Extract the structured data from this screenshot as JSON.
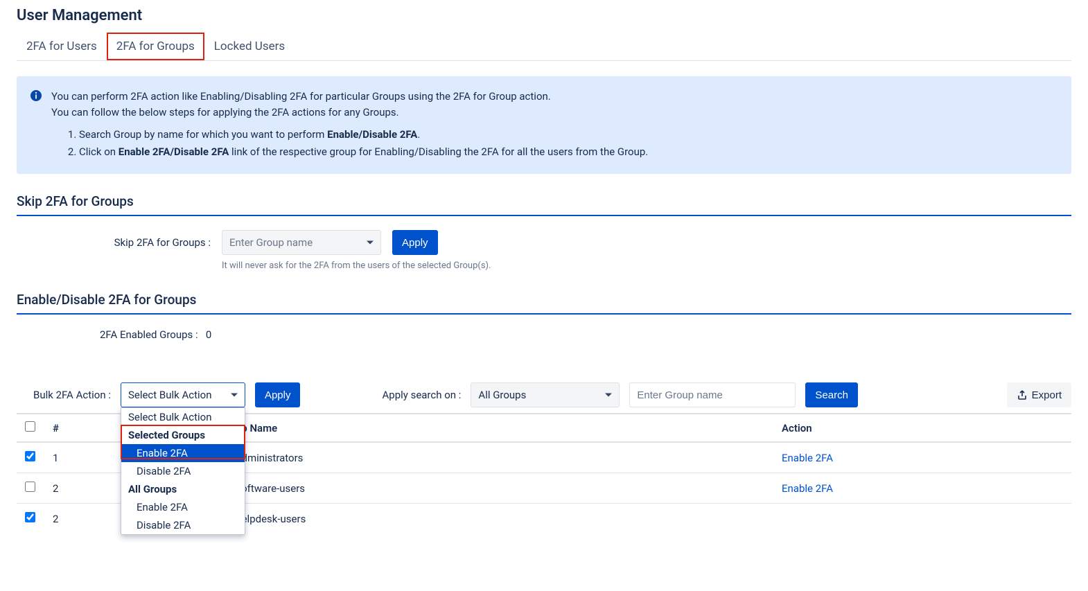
{
  "page_title": "User Management",
  "tabs": {
    "users": "2FA for Users",
    "groups": "2FA for Groups",
    "locked": "Locked Users"
  },
  "info": {
    "line1": "You can perform 2FA action like Enabling/Disabling 2FA for particular Groups using the 2FA for Group action.",
    "line2": "You can follow the below steps for applying the 2FA actions for any Groups.",
    "step1_pre": "Search Group by name for which you want to perform ",
    "step1_bold": "Enable/Disable 2FA",
    "step1_post": ".",
    "step2_pre": "Click on ",
    "step2_bold": "Enable 2FA/Disable 2FA",
    "step2_post": " link of the respective group for Enabling/Disabling the 2FA for all the users from the Group."
  },
  "skip_section": {
    "title": "Skip 2FA for Groups",
    "label": "Skip 2FA for Groups :",
    "placeholder": "Enter Group name",
    "apply": "Apply",
    "helper": "It will never ask for the 2FA from the users of the selected Group(s)."
  },
  "enable_section": {
    "title": "Enable/Disable 2FA for Groups",
    "count_label": "2FA Enabled Groups :",
    "count_value": "0"
  },
  "toolbar": {
    "bulk_label": "Bulk 2FA Action :",
    "bulk_selected": "Select Bulk Action",
    "apply": "Apply",
    "search_on_label": "Apply search on :",
    "search_on_value": "All Groups",
    "search_placeholder": "Enter Group name",
    "search_btn": "Search",
    "export_btn": "Export"
  },
  "dropdown": {
    "opt_default": "Select Bulk Action",
    "grp_selected": "Selected Groups",
    "opt_sel_enable": "Enable 2FA",
    "opt_sel_disable": "Disable 2FA",
    "grp_all": "All Groups",
    "opt_all_enable": "Enable 2FA",
    "opt_all_disable": "Disable 2FA"
  },
  "table": {
    "col_idx": "#",
    "col_group": "Group Name",
    "col_action": "Action",
    "rows": [
      {
        "checked": true,
        "idx": "1",
        "name": "jira-administrators",
        "action": "Enable 2FA"
      },
      {
        "checked": false,
        "idx": "2",
        "name": "jira-software-users",
        "action": "Enable 2FA"
      },
      {
        "checked": true,
        "idx": "2",
        "name": "jira-helpdesk-users",
        "action": ""
      }
    ]
  }
}
